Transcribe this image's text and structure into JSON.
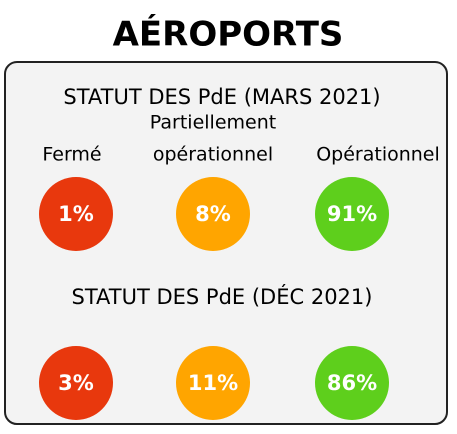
{
  "title": "AÉROPORTS",
  "columns": [
    [
      "Fermé"
    ],
    [
      "Partiellement",
      "opérationnel"
    ],
    [
      "Opérationnel"
    ]
  ],
  "colors": [
    "#e8380d",
    "#ffa500",
    "#5ecf1c"
  ],
  "sections": [
    {
      "heading": "STATUT DES PdE (MARS 2021)",
      "values": [
        "1%",
        "8%",
        "91%"
      ]
    },
    {
      "heading": "STATUT DES PdE (DÉC 2021)",
      "values": [
        "3%",
        "11%",
        "86%"
      ]
    }
  ]
}
